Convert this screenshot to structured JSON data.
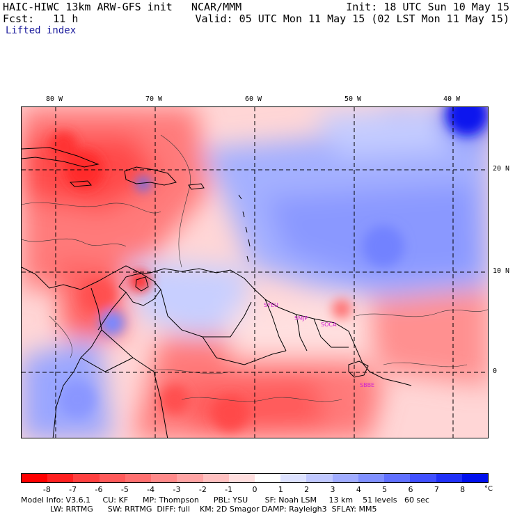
{
  "header": {
    "title_left": "HAIC-HIWC 13km ARW-GFS init   NCAR/MMM",
    "init": "Init: 18 UTC Sun 10 May 15",
    "fcst": "Fcst:   11 h",
    "valid": "Valid: 05 UTC Mon 11 May 15 (02 LST Mon 11 May 15)",
    "field": "Lifted index"
  },
  "map": {
    "lon_labels": [
      "80 W",
      "70 W",
      "60 W",
      "50 W",
      "40 W"
    ],
    "lat_labels": [
      "20 N",
      "10 N",
      "0"
    ],
    "stations": [
      {
        "label": "SYEU",
        "lon": -58.0,
        "lat": 6.8
      },
      {
        "label": "SMJP",
        "lon": -55.2,
        "lat": 5.4
      },
      {
        "label": "SOCA",
        "lon": -52.4,
        "lat": 4.8
      },
      {
        "label": "SBBE",
        "lon": -48.5,
        "lat": -1.4
      }
    ],
    "colors": {
      "neg_strong": "#ff0000",
      "neg_light": "#ffd0d0",
      "neutral": "#ffffff",
      "pos_light": "#d0d8ff",
      "pos_strong": "#0000ee"
    }
  },
  "colorbar": {
    "labels": [
      "-8",
      "-7",
      "-6",
      "-5",
      "-4",
      "-3",
      "-2",
      "-1",
      "0",
      "1",
      "2",
      "3",
      "4",
      "5",
      "6",
      "7",
      "8"
    ],
    "unit": "°C",
    "colors": [
      "#ff0000",
      "#ff2020",
      "#ff4040",
      "#ff5a5a",
      "#ff7070",
      "#ff8a8a",
      "#ffa4a4",
      "#ffc0c0",
      "#ffdede",
      "#ffffff",
      "#dde2ff",
      "#c0c8ff",
      "#a0acff",
      "#8090ff",
      "#6070ff",
      "#4050ff",
      "#2030f8",
      "#0010ee"
    ]
  },
  "footer": {
    "line1": "Model Info: V3.6.1     CU: KF      MP: Thompson      PBL: YSU       SF: Noah LSM     13 km    51 levels   60 sec",
    "line2": "            LW: RRTMG      SW: RRTMG  DIFF: full    KM: 2D Smagor DAMP: Rayleigh3  SFLAY: MM5"
  }
}
